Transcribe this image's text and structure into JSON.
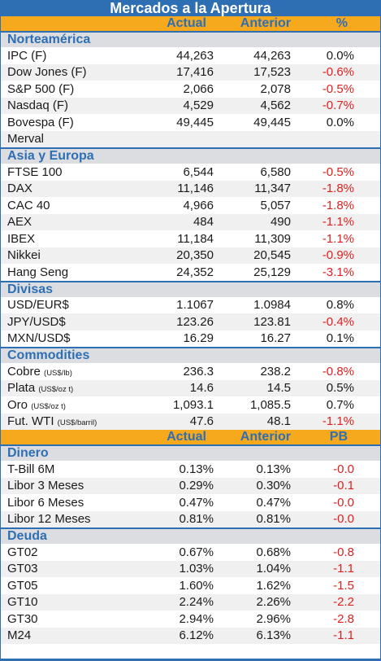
{
  "title": "Mercados a la Apertura",
  "header1": {
    "actual": "Actual",
    "anterior": "Anterior",
    "pct": "%"
  },
  "header2": {
    "actual": "Actual",
    "anterior": "Anterior",
    "pct": "PB"
  },
  "sections": {
    "norteamerica": {
      "title": "Norteamérica",
      "rows": [
        {
          "name": "IPC (F)",
          "actual": "44,263",
          "anterior": "44,263",
          "change": "0.0%"
        },
        {
          "name": "Dow Jones (F)",
          "actual": "17,416",
          "anterior": "17,523",
          "change": "-0.6%"
        },
        {
          "name": "S&P 500 (F)",
          "actual": "2,066",
          "anterior": "2,078",
          "change": "-0.5%"
        },
        {
          "name": "Nasdaq (F)",
          "actual": "4,529",
          "anterior": "4,562",
          "change": "-0.7%"
        },
        {
          "name": "Bovespa (F)",
          "actual": "49,445",
          "anterior": "49,445",
          "change": "0.0%"
        },
        {
          "name": "Merval",
          "actual": "",
          "anterior": "",
          "change": ""
        }
      ]
    },
    "asia": {
      "title": "Asia y Europa",
      "rows": [
        {
          "name": "FTSE 100",
          "actual": "6,544",
          "anterior": "6,580",
          "change": "-0.5%"
        },
        {
          "name": "DAX",
          "actual": "11,146",
          "anterior": "11,347",
          "change": "-1.8%"
        },
        {
          "name": "CAC 40",
          "actual": "4,966",
          "anterior": "5,057",
          "change": "-1.8%"
        },
        {
          "name": "AEX",
          "actual": "484",
          "anterior": "490",
          "change": "-1.1%"
        },
        {
          "name": "IBEX",
          "actual": "11,184",
          "anterior": "11,309",
          "change": "-1.1%"
        },
        {
          "name": "Nikkei",
          "actual": "20,350",
          "anterior": "20,545",
          "change": "-0.9%"
        },
        {
          "name": "Hang Seng",
          "actual": "24,352",
          "anterior": "25,129",
          "change": "-3.1%"
        }
      ]
    },
    "divisas": {
      "title": "Divisas",
      "rows": [
        {
          "name": "USD/EUR$",
          "actual": "1.1067",
          "anterior": "1.0984",
          "change": "0.8%"
        },
        {
          "name": "JPY/USD$",
          "actual": "123.26",
          "anterior": "123.81",
          "change": "-0.4%"
        },
        {
          "name": "MXN/USD$",
          "actual": "16.29",
          "anterior": "16.27",
          "change": "0.1%"
        }
      ]
    },
    "commodities": {
      "title": "Commodities",
      "rows": [
        {
          "name": "Cobre",
          "unit": "(US$/lb)",
          "actual": "236.3",
          "anterior": "238.2",
          "change": "-0.8%"
        },
        {
          "name": "Plata",
          "unit": "(US$/oz t)",
          "actual": "14.6",
          "anterior": "14.5",
          "change": "0.5%"
        },
        {
          "name": "Oro",
          "unit": "(US$/oz t)",
          "actual": "1,093.1",
          "anterior": "1,085.5",
          "change": "0.7%"
        },
        {
          "name": "Fut. WTI",
          "unit": "(US$/barril)",
          "actual": "47.6",
          "anterior": "48.1",
          "change": "-1.1%"
        }
      ]
    },
    "dinero": {
      "title": "Dinero",
      "rows": [
        {
          "name": "T-Bill 6M",
          "actual": "0.13%",
          "anterior": "0.13%",
          "change": "-0.0"
        },
        {
          "name": "Libor 3 Meses",
          "actual": "0.29%",
          "anterior": "0.30%",
          "change": "-0.1"
        },
        {
          "name": "Libor 6 Meses",
          "actual": "0.47%",
          "anterior": "0.47%",
          "change": "-0.0"
        },
        {
          "name": "Libor 12 Meses",
          "actual": "0.81%",
          "anterior": "0.81%",
          "change": "-0.0"
        }
      ]
    },
    "deuda": {
      "title": "Deuda",
      "rows": [
        {
          "name": "GT02",
          "actual": "0.67%",
          "anterior": "0.68%",
          "change": "-0.8"
        },
        {
          "name": "GT03",
          "actual": "1.03%",
          "anterior": "1.04%",
          "change": "-1.1"
        },
        {
          "name": "GT05",
          "actual": "1.60%",
          "anterior": "1.62%",
          "change": "-1.5"
        },
        {
          "name": "GT10",
          "actual": "2.24%",
          "anterior": "2.26%",
          "change": "-2.2"
        },
        {
          "name": "GT30",
          "actual": "2.94%",
          "anterior": "2.96%",
          "change": "-2.8"
        },
        {
          "name": "M24",
          "actual": "6.12%",
          "anterior": "6.13%",
          "change": "-1.1"
        }
      ]
    }
  },
  "colors": {
    "brand_blue": "#2e6fb4",
    "accent_orange": "#f7a91e",
    "section_gray": "#dcdde0",
    "negative_red": "#e02020"
  }
}
